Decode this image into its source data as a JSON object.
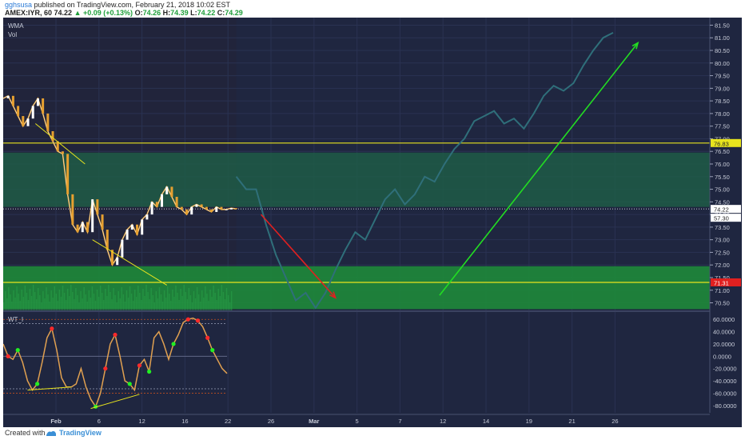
{
  "header": {
    "author": "gghsusa",
    "published_text": "published on TradingView.com, February 21, 2018 10:02 EST",
    "symbol": "AMEX:IYR, 60",
    "price": "74.22",
    "change": "+0.09 (+0.13%)",
    "ohlc": {
      "o_label": "O:",
      "o": "74.26",
      "h_label": "H:",
      "h": "74.39",
      "l_label": "L:",
      "l": "74.22",
      "c_label": "C:",
      "c": "74.29"
    }
  },
  "panes": {
    "main_labels": [
      "WMA",
      "Vol"
    ],
    "osc_label": "WT_I"
  },
  "footer": {
    "created_with": "Created with",
    "brand": "TradingView"
  },
  "colors": {
    "background": "#1f2640",
    "zone_upper": "#1f5c46",
    "zone_lower": "#1e8a3a",
    "level_line": "#e8e41e",
    "arrow_down": "#e02020",
    "arrow_up": "#22dd22",
    "price_line": "#e6a030",
    "projection_line": "#2f6f7a",
    "osc_line": "#e0a050"
  },
  "chart_data": [
    {
      "type": "line",
      "pane": "price",
      "x_tick_labels": [
        "Feb",
        "6",
        "12",
        "16",
        "22",
        "26",
        "Mar",
        "5",
        "7",
        "12",
        "14",
        "19",
        "21",
        "26"
      ],
      "y_axis_labels": [
        "81.50",
        "81.00",
        "80.50",
        "80.00",
        "79.50",
        "79.00",
        "78.50",
        "78.00",
        "77.50",
        "77.00",
        "76.50",
        "76.00",
        "75.50",
        "75.00",
        "74.50",
        "74.00",
        "73.50",
        "73.00",
        "72.50",
        "72.00",
        "71.50",
        "71.00",
        "70.50"
      ],
      "ylim": [
        70.2,
        81.8
      ],
      "price_badges": [
        {
          "label": "76.83",
          "value": 76.83,
          "color": "#e8e41e",
          "text_color": "#222"
        },
        {
          "label": "74.22",
          "value": 74.22,
          "color": "#ffffff",
          "text_color": "#222"
        },
        {
          "label": "57.30",
          "value": 73.95,
          "color": "#ffffff",
          "text_color": "#222"
        },
        {
          "label": "71.31",
          "value": 71.31,
          "color": "#e02020",
          "text_color": "#fff"
        }
      ],
      "horizontal_levels": [
        76.83,
        71.31
      ],
      "zones": [
        {
          "from": 74.3,
          "to": 76.45
        },
        {
          "from": 70.25,
          "to": 71.95
        }
      ],
      "series": [
        {
          "role": "price",
          "x": [
            0,
            2,
            4,
            6,
            8,
            10,
            12,
            14,
            16,
            18,
            20,
            22,
            24,
            26,
            28,
            30,
            32,
            34,
            36,
            38,
            40,
            42,
            44,
            46,
            48,
            50,
            52,
            54,
            56,
            58,
            60,
            62,
            64,
            66,
            68,
            70,
            72,
            74,
            76,
            78,
            80,
            82,
            84,
            86,
            88,
            90,
            92,
            94
          ],
          "values": [
            78.6,
            78.7,
            78.3,
            77.9,
            77.5,
            77.8,
            78.3,
            78.6,
            78.0,
            77.3,
            76.9,
            76.5,
            76.4,
            74.8,
            73.6,
            73.3,
            73.7,
            73.3,
            74.6,
            74.0,
            73.4,
            72.6,
            72.0,
            72.3,
            73.0,
            73.4,
            73.6,
            73.2,
            73.8,
            74.0,
            74.5,
            74.3,
            74.8,
            75.1,
            74.7,
            74.3,
            74.2,
            74.0,
            74.3,
            74.4,
            74.3,
            74.2,
            74.1,
            74.3,
            74.2,
            74.2,
            74.25,
            74.22
          ]
        },
        {
          "role": "projection",
          "x": [
            94,
            98,
            102,
            106,
            110,
            114,
            118,
            122,
            126,
            130,
            134,
            138,
            142,
            146,
            150,
            154,
            158,
            162,
            166,
            170,
            174,
            178,
            182,
            186,
            190,
            194,
            198,
            202,
            206,
            210,
            214,
            218,
            222,
            226,
            230,
            234,
            238,
            242,
            246
          ],
          "values": [
            75.5,
            75.0,
            75.0,
            73.6,
            72.4,
            71.5,
            70.6,
            70.9,
            70.3,
            70.9,
            71.8,
            72.6,
            73.3,
            73.0,
            73.8,
            74.6,
            75.0,
            74.4,
            74.8,
            75.5,
            75.3,
            76.0,
            76.6,
            77.0,
            77.7,
            77.9,
            78.1,
            77.6,
            77.8,
            77.4,
            78.0,
            78.7,
            79.1,
            78.9,
            79.2,
            79.9,
            80.5,
            81.0,
            81.2
          ]
        }
      ],
      "arrows": [
        {
          "from": [
            104,
            74.0
          ],
          "to": [
            134,
            70.7
          ],
          "color": "down"
        },
        {
          "from": [
            176,
            70.8
          ],
          "to": [
            256,
            80.8
          ],
          "color": "up"
        }
      ],
      "x_range": [
        0,
        285
      ]
    },
    {
      "type": "line",
      "pane": "oscillator",
      "y_axis_labels": [
        "60.0000",
        "40.0000",
        "20.0000",
        "0.0000",
        "-20.0000",
        "-40.0000",
        "-60.0000",
        "-80.0000"
      ],
      "ylim": [
        -92,
        72
      ],
      "reference_levels": [
        60,
        53,
        0,
        -53,
        -60
      ],
      "series": [
        {
          "name": "WT_I",
          "x": [
            0,
            2,
            4,
            6,
            8,
            10,
            12,
            14,
            16,
            18,
            20,
            22,
            24,
            26,
            28,
            30,
            32,
            34,
            36,
            38,
            40,
            42,
            44,
            46,
            48,
            50,
            52,
            54,
            56,
            58,
            60,
            62,
            64,
            66,
            68,
            70,
            72,
            74,
            76,
            78,
            80,
            82,
            84,
            86,
            88,
            90,
            92
          ],
          "values": [
            20,
            0,
            -5,
            10,
            -10,
            -40,
            -55,
            -45,
            -10,
            30,
            45,
            10,
            -35,
            -50,
            -50,
            -45,
            -20,
            -50,
            -70,
            -82,
            -60,
            -20,
            20,
            35,
            0,
            -40,
            -45,
            -55,
            -15,
            -5,
            -25,
            30,
            40,
            20,
            -5,
            20,
            35,
            55,
            60,
            62,
            58,
            48,
            30,
            10,
            -5,
            -20,
            -28
          ]
        }
      ],
      "markers_red_x": [
        2,
        20,
        42,
        46,
        56,
        76,
        80,
        84
      ],
      "markers_green_x": [
        6,
        14,
        38,
        52,
        60,
        70,
        86
      ]
    }
  ]
}
